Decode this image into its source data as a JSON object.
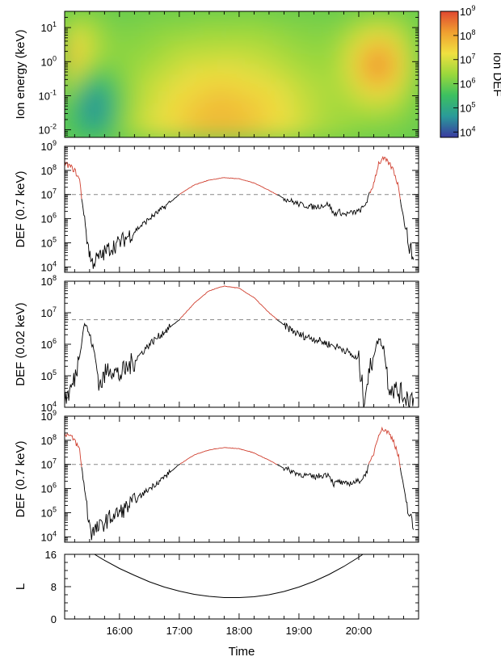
{
  "chart_data": [
    {
      "type": "heatmap",
      "name": "spectrogram",
      "ylabel": "Ion energy (keV)",
      "yscale": "log",
      "ylim": [
        0.006,
        30
      ],
      "xlim": [
        "15:05",
        "21:00"
      ],
      "yticks": [
        0.01,
        0.1,
        1,
        10
      ],
      "ytick_labels": [
        "10",
        "10",
        "10",
        "10"
      ],
      "ytick_exponents": [
        "-2",
        "-1",
        "0",
        "1"
      ],
      "colorbar": {
        "label": "Ion DEF",
        "scale": "log",
        "range": [
          6000,
          1000000000
        ],
        "ticks": [
          10000,
          100000,
          1000000,
          10000000,
          100000000,
          1000000000
        ],
        "tick_labels": [
          "10",
          "10",
          "10",
          "10",
          "10",
          "10"
        ],
        "tick_exponents": [
          "4",
          "5",
          "6",
          "7",
          "8",
          "9"
        ],
        "colors": [
          "#3a3aa0",
          "#2a9a9a",
          "#3cc060",
          "#9ad83c",
          "#f0e040",
          "#f0a030",
          "#e04830"
        ]
      },
      "features": [
        {
          "time": "15:10",
          "energy_keV": 0.8,
          "log10_def": 8.2
        },
        {
          "time": "17:45",
          "energy_keV": 0.02,
          "log10_def": 7.8
        },
        {
          "time": "20:20",
          "energy_keV": 0.8,
          "log10_def": 8.3
        },
        {
          "time": "15:35",
          "energy_keV": 0.05,
          "log10_def": 4.5
        }
      ]
    },
    {
      "type": "line",
      "name": "def-0.7",
      "ylabel": "DEF (0.7 keV)",
      "yscale": "log",
      "ylim": [
        6000,
        1000000000
      ],
      "yticks": [
        10000,
        100000,
        1000000,
        10000000,
        100000000,
        1000000000
      ],
      "ytick_labels": [
        "10",
        "10",
        "10",
        "10",
        "10",
        "10"
      ],
      "ytick_exponents": [
        "4",
        "5",
        "6",
        "7",
        "8",
        "9"
      ],
      "threshold": 10000000,
      "x": [
        "15:05",
        "15:10",
        "15:15",
        "15:20",
        "15:22",
        "15:25",
        "15:28",
        "15:32",
        "15:40",
        "15:50",
        "16:00",
        "16:15",
        "16:30",
        "16:45",
        "17:00",
        "17:15",
        "17:30",
        "17:45",
        "18:00",
        "18:15",
        "18:30",
        "18:45",
        "19:00",
        "19:15",
        "19:30",
        "19:35",
        "19:40",
        "19:45",
        "20:00",
        "20:05",
        "20:10",
        "20:15",
        "20:20",
        "20:25",
        "20:30",
        "20:35",
        "20:40",
        "20:45",
        "20:50",
        "20:55"
      ],
      "y": [
        200000000,
        150000000,
        100000000,
        40000000,
        8000000,
        1000000,
        100000,
        15000,
        25000,
        60000,
        100000,
        300000,
        1000000,
        3000000,
        10000000,
        25000000,
        40000000,
        50000000,
        45000000,
        30000000,
        15000000,
        7000000,
        4000000,
        3000000,
        4000000,
        1500000,
        2000000,
        1500000,
        2000000,
        3000000,
        8000000,
        30000000,
        200000000,
        300000000,
        200000000,
        100000000,
        20000000,
        1000000,
        100000,
        20000
      ],
      "series": [
        {
          "name": "above-threshold",
          "color": "#d04030"
        },
        {
          "name": "below-threshold",
          "color": "#000000"
        }
      ]
    },
    {
      "type": "line",
      "name": "def-0.02",
      "ylabel": "DEF (0.02 keV)",
      "yscale": "log",
      "ylim": [
        10000,
        100000000
      ],
      "yticks": [
        10000,
        100000,
        1000000,
        10000000,
        100000000
      ],
      "ytick_labels": [
        "10",
        "10",
        "10",
        "10",
        "10"
      ],
      "ytick_exponents": [
        "4",
        "5",
        "6",
        "7",
        "8"
      ],
      "threshold": 6000000,
      "x": [
        "15:05",
        "15:10",
        "15:15",
        "15:20",
        "15:25",
        "15:30",
        "15:35",
        "15:40",
        "15:50",
        "16:00",
        "16:15",
        "16:30",
        "16:45",
        "17:00",
        "17:15",
        "17:30",
        "17:45",
        "18:00",
        "18:15",
        "18:30",
        "18:45",
        "19:00",
        "19:15",
        "19:30",
        "19:45",
        "20:00",
        "20:05",
        "20:10",
        "20:15",
        "20:20",
        "20:25",
        "20:30",
        "20:40",
        "20:50",
        "20:55"
      ],
      "y": [
        20000,
        30000,
        80000,
        500000,
        5000000,
        2000000,
        500000,
        50000,
        200000,
        100000,
        300000,
        1000000,
        2500000,
        6000000,
        20000000,
        50000000,
        70000000,
        60000000,
        30000000,
        10000000,
        4000000,
        2000000,
        1500000,
        1000000,
        700000,
        300000,
        20000,
        100000,
        500000,
        1500000,
        800000,
        50000,
        30000,
        20000,
        20000
      ],
      "series": [
        {
          "name": "above-threshold",
          "color": "#d04030"
        },
        {
          "name": "below-threshold",
          "color": "#000000"
        }
      ]
    },
    {
      "type": "line",
      "name": "def-0.7-combined",
      "ylabel": "DEF (0.7 keV)",
      "yscale": "log",
      "ylim": [
        6000,
        1000000000
      ],
      "yticks": [
        10000,
        100000,
        1000000,
        10000000,
        100000000,
        1000000000
      ],
      "ytick_labels": [
        "10",
        "10",
        "10",
        "10",
        "10",
        "10"
      ],
      "ytick_exponents": [
        "4",
        "5",
        "6",
        "7",
        "8",
        "9"
      ],
      "threshold": 10000000,
      "x": [
        "15:05",
        "15:10",
        "15:15",
        "15:20",
        "15:22",
        "15:25",
        "15:28",
        "15:32",
        "15:40",
        "15:50",
        "16:00",
        "16:15",
        "16:30",
        "16:45",
        "17:00",
        "17:15",
        "17:30",
        "17:45",
        "18:00",
        "18:15",
        "18:30",
        "18:45",
        "19:00",
        "19:15",
        "19:30",
        "19:35",
        "19:40",
        "19:45",
        "20:00",
        "20:05",
        "20:10",
        "20:15",
        "20:20",
        "20:25",
        "20:30",
        "20:35",
        "20:40",
        "20:45",
        "20:50",
        "20:55"
      ],
      "y": [
        200000000,
        150000000,
        100000000,
        40000000,
        8000000,
        1000000,
        100000,
        15000,
        25000,
        60000,
        100000,
        300000,
        1000000,
        3000000,
        10000000,
        25000000,
        40000000,
        50000000,
        45000000,
        30000000,
        15000000,
        7000000,
        4000000,
        3000000,
        4000000,
        1500000,
        2000000,
        1500000,
        2000000,
        3000000,
        8000000,
        30000000,
        200000000,
        300000000,
        200000000,
        100000000,
        20000000,
        1000000,
        100000,
        20000
      ],
      "series": [
        {
          "name": "above-threshold",
          "color": "#d04030"
        },
        {
          "name": "below-threshold",
          "color": "#000000"
        }
      ]
    },
    {
      "type": "line",
      "name": "l-shell",
      "ylabel": "L",
      "yscale": "linear",
      "ylim": [
        0,
        16
      ],
      "yticks": [
        0,
        8,
        16
      ],
      "ytick_labels": [
        "0",
        "8",
        "16"
      ],
      "xlabel": "Time",
      "xticks": [
        "16:00",
        "17:00",
        "18:00",
        "19:00",
        "20:00"
      ],
      "x": [
        "15:35",
        "15:45",
        "16:00",
        "16:15",
        "16:30",
        "16:45",
        "17:00",
        "17:15",
        "17:30",
        "17:45",
        "18:00",
        "18:15",
        "18:30",
        "18:45",
        "19:00",
        "19:15",
        "19:30",
        "19:45",
        "20:00",
        "20:10"
      ],
      "y": [
        16,
        14.5,
        12.5,
        10.8,
        9.2,
        7.9,
        6.9,
        6.1,
        5.6,
        5.3,
        5.3,
        5.5,
        6.0,
        6.8,
        7.9,
        9.3,
        11.0,
        13.0,
        15.3,
        17.0
      ],
      "color": "#000000"
    }
  ]
}
